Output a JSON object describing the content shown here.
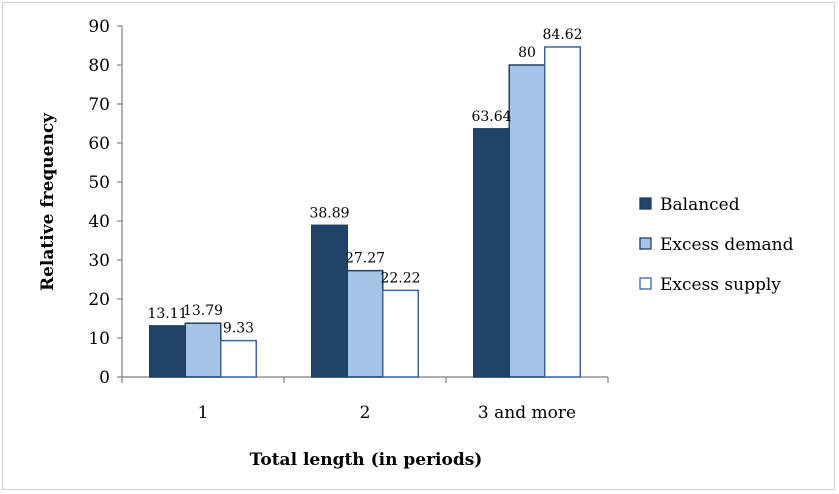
{
  "chart_data": {
    "type": "bar",
    "title": "",
    "xlabel": "Total length (in periods)",
    "ylabel": "Relative frequency",
    "ylim": [
      0,
      90
    ],
    "yticks": [
      0,
      10,
      20,
      30,
      40,
      50,
      60,
      70,
      80,
      90
    ],
    "categories": [
      "1",
      "2",
      "3 and more"
    ],
    "series": [
      {
        "name": "Balanced",
        "values": [
          13.11,
          38.89,
          63.64
        ],
        "labels": [
          "13.11",
          "38.89",
          "63.64"
        ],
        "color": "#1f4468"
      },
      {
        "name": "Excess demand",
        "values": [
          13.79,
          27.27,
          80
        ],
        "labels": [
          "13.79",
          "27.27",
          "80"
        ],
        "color": "#a4c3e6"
      },
      {
        "name": "Excess supply",
        "values": [
          9.33,
          22.22,
          84.62
        ],
        "labels": [
          "9.33",
          "22.22",
          "84.62"
        ],
        "color": "#ffffff"
      }
    ],
    "bar_stroke": "#1f3f63",
    "excess_supply_stroke": "#3b64a0",
    "grid": false,
    "legend": "right"
  }
}
